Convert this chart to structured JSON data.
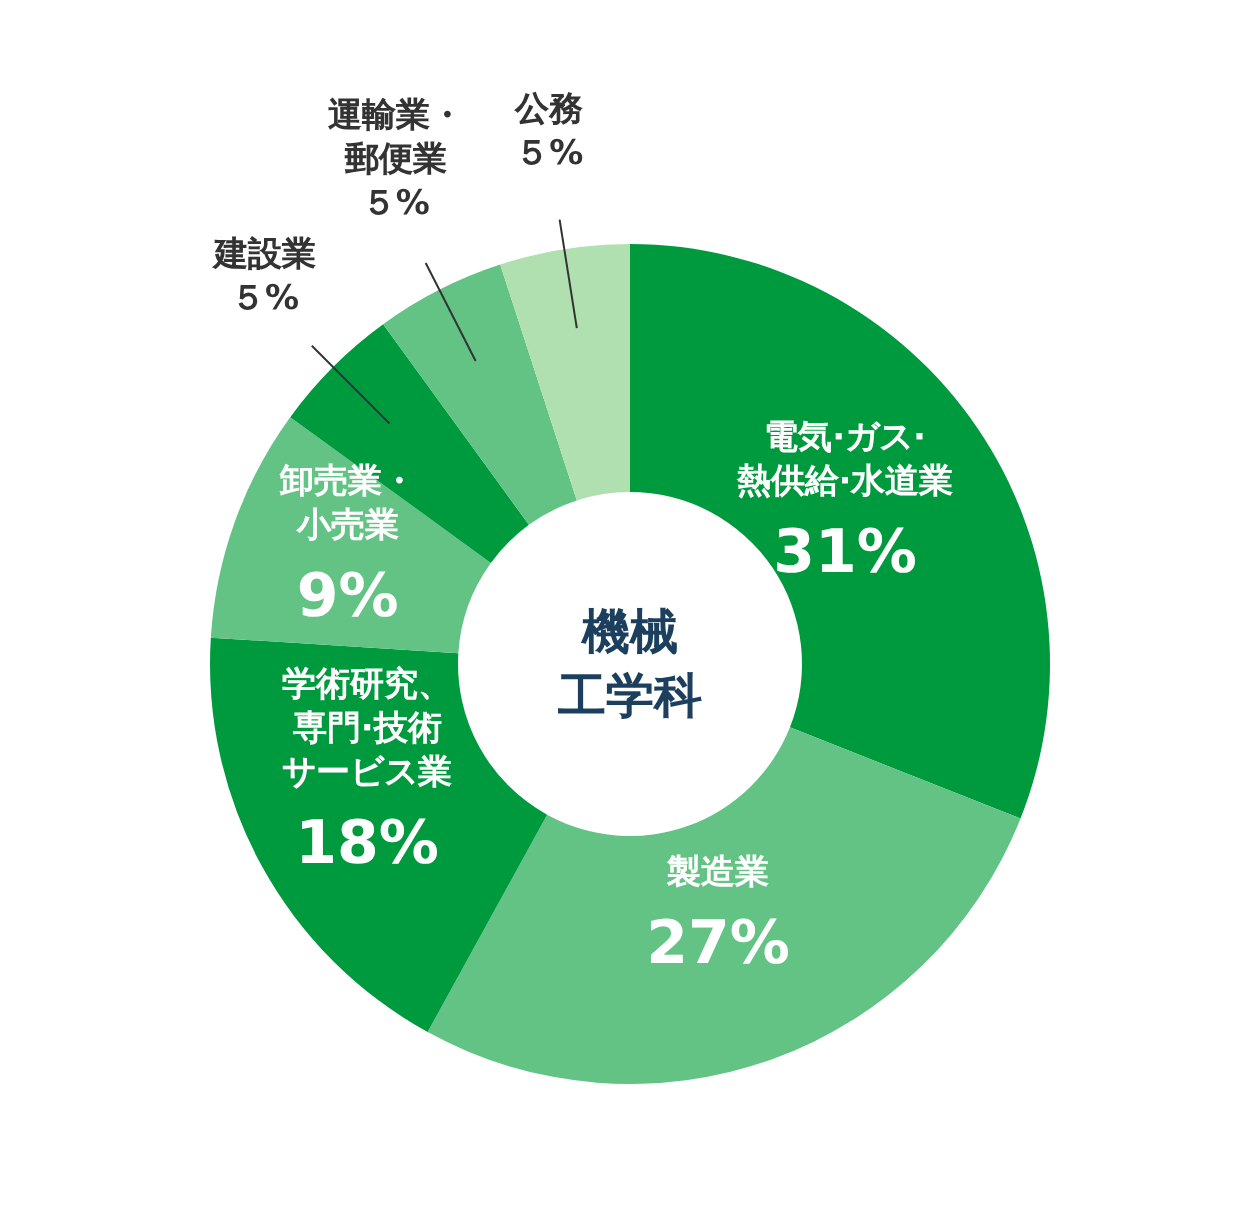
{
  "chart_data": {
    "type": "donut",
    "title": "機械工学科",
    "categories": [
      "電気·ガス·熱供給·水道業",
      "製造業",
      "学術研究、専門·技術サービス業",
      "卸売業・小売業",
      "建設業",
      "運輸業・郵便業",
      "公務"
    ],
    "values": [
      31,
      27,
      18,
      9,
      5,
      5,
      5
    ],
    "value_labels": [
      "31%",
      "27%",
      "18%",
      "9%",
      "５%",
      "５%",
      "５%"
    ],
    "colors": [
      "#009a3e",
      "#62c384",
      "#009a3e",
      "#62c384",
      "#009a3e",
      "#62c384",
      "#b0e0b0"
    ]
  }
}
